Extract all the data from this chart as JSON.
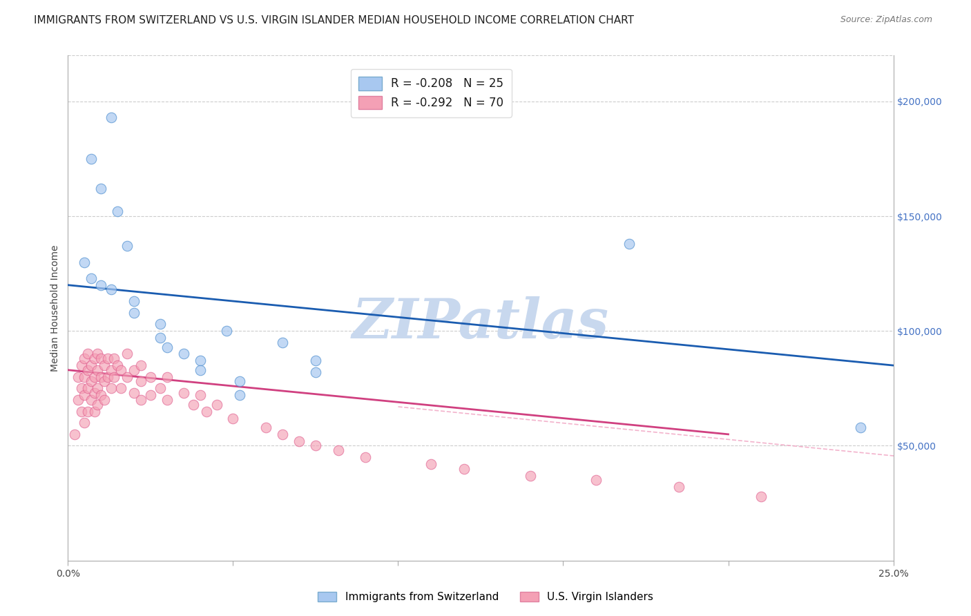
{
  "title": "IMMIGRANTS FROM SWITZERLAND VS U.S. VIRGIN ISLANDER MEDIAN HOUSEHOLD INCOME CORRELATION CHART",
  "source": "Source: ZipAtlas.com",
  "ylabel": "Median Household Income",
  "xlim": [
    0.0,
    0.25
  ],
  "ylim": [
    0,
    220000
  ],
  "xticks": [
    0.0,
    0.05,
    0.1,
    0.15,
    0.2,
    0.25
  ],
  "xticklabels": [
    "0.0%",
    "",
    "",
    "",
    "",
    "25.0%"
  ],
  "yticks_right": [
    50000,
    100000,
    150000,
    200000
  ],
  "ytick_labels_right": [
    "$50,000",
    "$100,000",
    "$150,000",
    "$200,000"
  ],
  "color_blue": "#a8c8f0",
  "color_pink": "#f4a0b5",
  "color_line_blue": "#1a5cb0",
  "color_line_pink": "#d04080",
  "color_line_dashed": "#f0a0c0",
  "watermark": "ZIPatlas",
  "legend_label1": "Immigrants from Switzerland",
  "legend_label2": "U.S. Virgin Islanders",
  "blue_scatter_x": [
    0.013,
    0.007,
    0.01,
    0.015,
    0.018,
    0.005,
    0.007,
    0.01,
    0.013,
    0.02,
    0.02,
    0.028,
    0.028,
    0.03,
    0.035,
    0.04,
    0.04,
    0.048,
    0.052,
    0.052,
    0.065,
    0.075,
    0.075,
    0.17,
    0.24
  ],
  "blue_scatter_y": [
    193000,
    175000,
    162000,
    152000,
    137000,
    130000,
    123000,
    120000,
    118000,
    113000,
    108000,
    103000,
    97000,
    93000,
    90000,
    87000,
    83000,
    100000,
    78000,
    72000,
    95000,
    87000,
    82000,
    138000,
    58000
  ],
  "pink_scatter_x": [
    0.002,
    0.003,
    0.003,
    0.004,
    0.004,
    0.004,
    0.005,
    0.005,
    0.005,
    0.005,
    0.006,
    0.006,
    0.006,
    0.006,
    0.007,
    0.007,
    0.007,
    0.008,
    0.008,
    0.008,
    0.008,
    0.009,
    0.009,
    0.009,
    0.009,
    0.01,
    0.01,
    0.01,
    0.011,
    0.011,
    0.011,
    0.012,
    0.012,
    0.013,
    0.013,
    0.014,
    0.014,
    0.015,
    0.016,
    0.016,
    0.018,
    0.018,
    0.02,
    0.02,
    0.022,
    0.022,
    0.022,
    0.025,
    0.025,
    0.028,
    0.03,
    0.03,
    0.035,
    0.038,
    0.04,
    0.042,
    0.045,
    0.05,
    0.06,
    0.065,
    0.07,
    0.075,
    0.082,
    0.09,
    0.11,
    0.12,
    0.14,
    0.16,
    0.185,
    0.21
  ],
  "pink_scatter_y": [
    55000,
    80000,
    70000,
    85000,
    75000,
    65000,
    88000,
    80000,
    72000,
    60000,
    90000,
    83000,
    75000,
    65000,
    85000,
    78000,
    70000,
    88000,
    80000,
    73000,
    65000,
    90000,
    83000,
    75000,
    68000,
    88000,
    80000,
    72000,
    85000,
    78000,
    70000,
    88000,
    80000,
    83000,
    75000,
    88000,
    80000,
    85000,
    83000,
    75000,
    90000,
    80000,
    83000,
    73000,
    85000,
    78000,
    70000,
    80000,
    72000,
    75000,
    80000,
    70000,
    73000,
    68000,
    72000,
    65000,
    68000,
    62000,
    58000,
    55000,
    52000,
    50000,
    48000,
    45000,
    42000,
    40000,
    37000,
    35000,
    32000,
    28000
  ],
  "blue_line_x": [
    0.0,
    0.25
  ],
  "blue_line_y": [
    120000,
    85000
  ],
  "pink_line_x": [
    0.0,
    0.2
  ],
  "pink_line_y": [
    83000,
    55000
  ],
  "dashed_line_x": [
    0.1,
    0.5
  ],
  "dashed_line_y": [
    67000,
    10000
  ],
  "background_color": "#ffffff",
  "grid_color": "#cccccc",
  "title_fontsize": 11,
  "axis_fontsize": 10,
  "watermark_text": "ZIPatlas",
  "watermark_color": "#c8d8ee",
  "watermark_fontsize": 58
}
